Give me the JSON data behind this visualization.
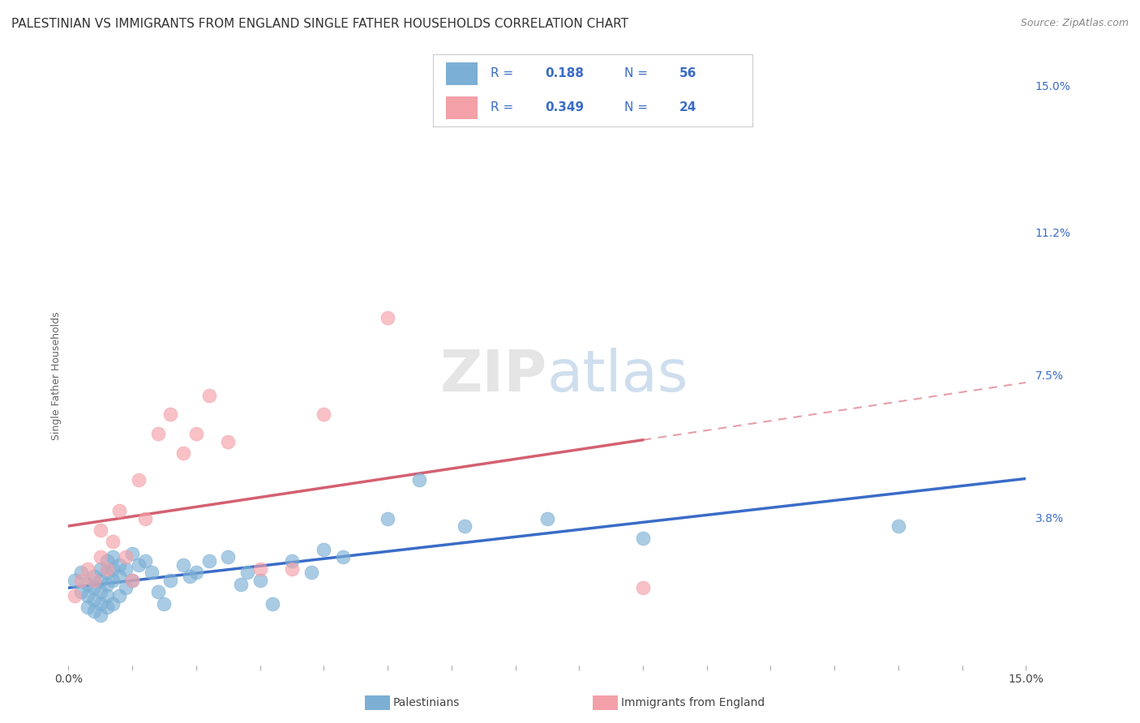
{
  "title": "PALESTINIAN VS IMMIGRANTS FROM ENGLAND SINGLE FATHER HOUSEHOLDS CORRELATION CHART",
  "source_text": "Source: ZipAtlas.com",
  "ylabel": "Single Father Households",
  "xlim": [
    0.0,
    0.15
  ],
  "ylim": [
    0.0,
    0.15
  ],
  "grid_color": "#cccccc",
  "background_color": "#ffffff",
  "blue_R": "0.188",
  "blue_N": "56",
  "pink_R": "0.349",
  "pink_N": "24",
  "blue_scatter_color": "#7bafd4",
  "pink_scatter_color": "#f4a0a8",
  "blue_line_color": "#3a6cc8",
  "pink_line_color": "#d46070",
  "legend_edge_color": "#cccccc",
  "right_tick_color": "#3a6cc8",
  "palestinians_x": [
    0.001,
    0.002,
    0.002,
    0.003,
    0.003,
    0.003,
    0.004,
    0.004,
    0.004,
    0.004,
    0.005,
    0.005,
    0.005,
    0.005,
    0.005,
    0.006,
    0.006,
    0.006,
    0.006,
    0.006,
    0.007,
    0.007,
    0.007,
    0.007,
    0.008,
    0.008,
    0.008,
    0.009,
    0.009,
    0.01,
    0.01,
    0.011,
    0.012,
    0.013,
    0.014,
    0.015,
    0.016,
    0.018,
    0.019,
    0.02,
    0.022,
    0.025,
    0.027,
    0.028,
    0.03,
    0.032,
    0.035,
    0.038,
    0.04,
    0.043,
    0.05,
    0.055,
    0.062,
    0.075,
    0.09,
    0.13
  ],
  "palestinians_y": [
    0.022,
    0.019,
    0.024,
    0.021,
    0.018,
    0.015,
    0.023,
    0.02,
    0.017,
    0.014,
    0.025,
    0.022,
    0.019,
    0.016,
    0.013,
    0.027,
    0.024,
    0.021,
    0.018,
    0.015,
    0.028,
    0.025,
    0.022,
    0.016,
    0.026,
    0.023,
    0.018,
    0.025,
    0.02,
    0.029,
    0.022,
    0.026,
    0.027,
    0.024,
    0.019,
    0.016,
    0.022,
    0.026,
    0.023,
    0.024,
    0.027,
    0.028,
    0.021,
    0.024,
    0.022,
    0.016,
    0.027,
    0.024,
    0.03,
    0.028,
    0.038,
    0.048,
    0.036,
    0.038,
    0.033,
    0.036
  ],
  "england_x": [
    0.001,
    0.002,
    0.003,
    0.004,
    0.005,
    0.005,
    0.006,
    0.007,
    0.008,
    0.009,
    0.01,
    0.011,
    0.012,
    0.014,
    0.016,
    0.018,
    0.02,
    0.022,
    0.025,
    0.03,
    0.035,
    0.04,
    0.05,
    0.09
  ],
  "england_y": [
    0.018,
    0.022,
    0.025,
    0.022,
    0.035,
    0.028,
    0.025,
    0.032,
    0.04,
    0.028,
    0.022,
    0.048,
    0.038,
    0.06,
    0.065,
    0.055,
    0.06,
    0.07,
    0.058,
    0.025,
    0.025,
    0.065,
    0.09,
    0.02
  ],
  "title_fontsize": 11,
  "axis_label_fontsize": 9,
  "tick_fontsize": 10,
  "source_fontsize": 9
}
